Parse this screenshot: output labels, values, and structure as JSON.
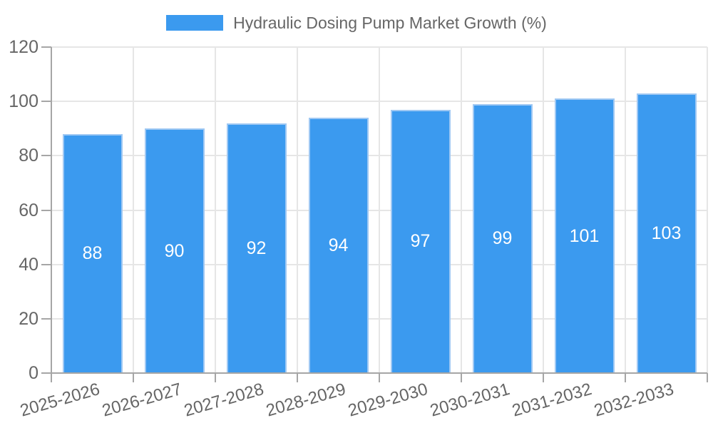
{
  "legend": {
    "label": "Hydraulic Dosing Pump Market Growth (%)"
  },
  "chart_data": {
    "type": "bar",
    "title": "Hydraulic Dosing Pump Market Growth (%)",
    "categories": [
      "2025-2026",
      "2026-2027",
      "2027-2028",
      "2028-2029",
      "2029-2030",
      "2030-2031",
      "2031-2032",
      "2032-2033"
    ],
    "values": [
      88,
      90,
      92,
      94,
      97,
      99,
      101,
      103
    ],
    "xlabel": "",
    "ylabel": "",
    "ylim": [
      0,
      120
    ],
    "yticks": [
      0,
      20,
      40,
      60,
      80,
      100,
      120
    ],
    "grid": true,
    "legend_position": "top",
    "value_labels_inside_bars": true,
    "colors": {
      "bar": "#3b9aef",
      "bar_border": "#9fc8f3",
      "grid": "#e6e6e6",
      "axis": "#a6a6a6",
      "tick_text": "#666666",
      "value_text": "#ffffff"
    }
  }
}
